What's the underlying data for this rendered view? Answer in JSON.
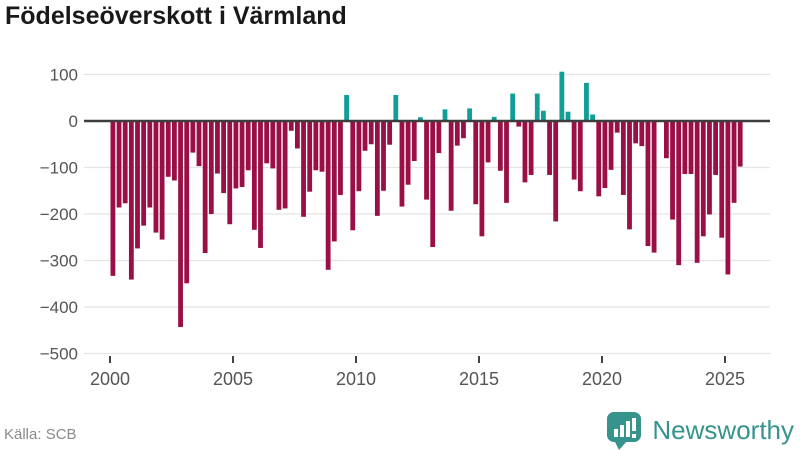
{
  "title": "Födelseöverskott i Värmland",
  "source": "Källa: SCB",
  "logo": {
    "text": "Newsworthy"
  },
  "colors": {
    "negative_bar": "#9a0f45",
    "positive_bar": "#119e96",
    "zero_line": "#3d3d3d",
    "grid_line": "#e4e4e4",
    "tick_text": "#555555",
    "source_text": "#8a8a8a",
    "logo_teal": "#37948c"
  },
  "chart_data": {
    "type": "bar",
    "title": "Födelseöverskott i Värmland",
    "xlabel": "",
    "ylabel": "",
    "x_unit": "quarter",
    "start_year": 2000,
    "start_quarter": 1,
    "end_label": "2025Q3",
    "grid": "horizontal",
    "legend": "none",
    "ylim": [
      -500,
      100
    ],
    "y_ticks": [
      100,
      0,
      -100,
      -200,
      -300,
      -400,
      -500
    ],
    "y_tick_labels": [
      "100",
      "0",
      "−100",
      "−200",
      "−300",
      "−400",
      "−500"
    ],
    "x_ticks": [
      2000,
      2005,
      2010,
      2015,
      2020,
      2025
    ],
    "x_tick_labels": [
      "2000",
      "2005",
      "2010",
      "2015",
      "2020",
      "2025"
    ],
    "values": [
      -333,
      -186,
      -177,
      -341,
      -274,
      -225,
      -186,
      -240,
      -255,
      -120,
      -128,
      -443,
      -349,
      -68,
      -97,
      -284,
      -200,
      -113,
      -155,
      -222,
      -145,
      -142,
      -106,
      -234,
      -273,
      -91,
      -102,
      -191,
      -188,
      -21,
      -59,
      -206,
      -152,
      -106,
      -109,
      -320,
      -259,
      -159,
      56,
      -235,
      -151,
      -64,
      -50,
      -204,
      -150,
      -51,
      56,
      -184,
      -137,
      -86,
      8,
      -169,
      -271,
      -69,
      25,
      -193,
      -53,
      -37,
      27,
      -179,
      -248,
      -89,
      9,
      -107,
      -176,
      59,
      -12,
      -132,
      -116,
      59,
      22,
      -116,
      -216,
      106,
      20,
      -126,
      -151,
      82,
      14,
      -162,
      -144,
      -105,
      -25,
      -159,
      -233,
      -48,
      -54,
      -269,
      -283,
      -2,
      -80,
      -212,
      -310,
      -114,
      -114,
      -305,
      -248,
      -201,
      -116,
      -251,
      -330,
      -176,
      -98
    ]
  }
}
